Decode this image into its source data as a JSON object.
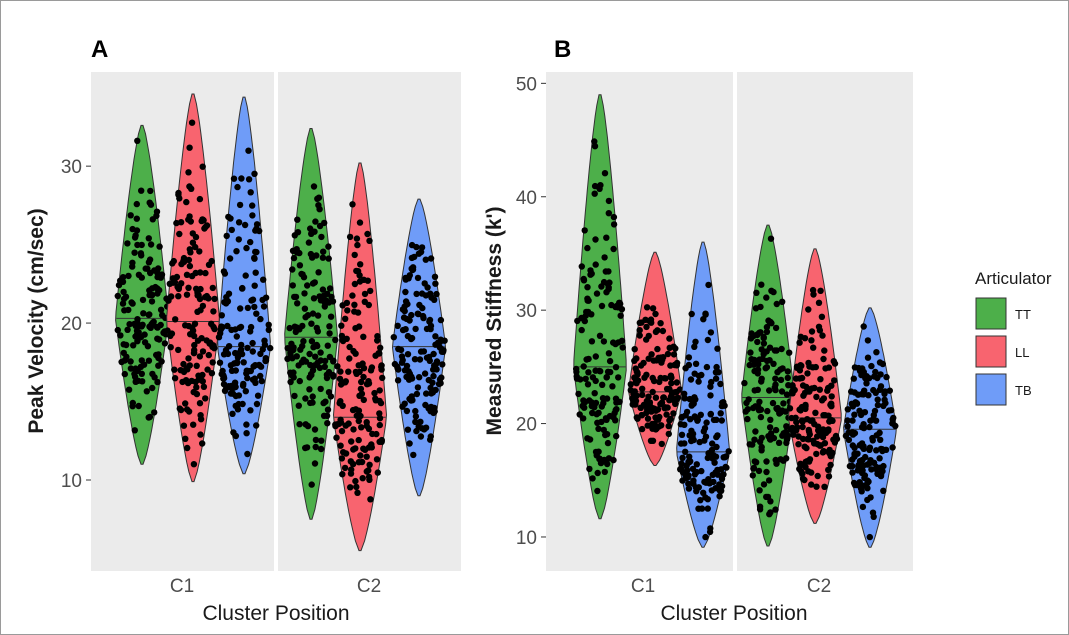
{
  "legend": {
    "title": "Articulator",
    "items": [
      {
        "label": "TT",
        "color": "#4daf4a"
      },
      {
        "label": "LL",
        "color": "#f8646f"
      },
      {
        "label": "TB",
        "color": "#6f9cf8"
      }
    ]
  },
  "chart_data": [
    {
      "panel": "A",
      "type": "violin",
      "xlabel": "Cluster Position",
      "ylabel": "Peak Velocity (cm/sec)",
      "ylim": [
        4.2,
        36.0
      ],
      "yticks": [
        10,
        20,
        30
      ],
      "grid": false,
      "facets": [
        "C1",
        "C2"
      ],
      "series": [
        {
          "facet": "C1",
          "articulator": "TT",
          "min": 11.0,
          "max": 32.6,
          "median": 20.3
        },
        {
          "facet": "C1",
          "articulator": "LL",
          "min": 9.9,
          "max": 34.6,
          "median": 20.1
        },
        {
          "facet": "C1",
          "articulator": "TB",
          "min": 10.4,
          "max": 34.4,
          "median": 18.5
        },
        {
          "facet": "C2",
          "articulator": "TT",
          "min": 7.5,
          "max": 32.4,
          "median": 19.1
        },
        {
          "facet": "C2",
          "articulator": "LL",
          "min": 5.5,
          "max": 30.2,
          "median": 14.0
        },
        {
          "facet": "C2",
          "articulator": "TB",
          "min": 9.0,
          "max": 27.9,
          "median": 18.5
        }
      ]
    },
    {
      "panel": "B",
      "type": "violin",
      "xlabel": "Cluster Position",
      "ylabel": "Measured Stiffness (k')",
      "ylim": [
        7.0,
        51.0
      ],
      "yticks": [
        10,
        20,
        30,
        40,
        50
      ],
      "grid": false,
      "facets": [
        "C1",
        "C2"
      ],
      "series": [
        {
          "facet": "C1",
          "articulator": "TT",
          "min": 11.6,
          "max": 49.0,
          "median": 25.0
        },
        {
          "facet": "C1",
          "articulator": "LL",
          "min": 16.3,
          "max": 35.1,
          "median": 22.8
        },
        {
          "facet": "C1",
          "articulator": "TB",
          "min": 9.1,
          "max": 36.0,
          "median": 17.5
        },
        {
          "facet": "C2",
          "articulator": "TT",
          "min": 9.2,
          "max": 37.5,
          "median": 22.3
        },
        {
          "facet": "C2",
          "articulator": "LL",
          "min": 11.2,
          "max": 35.4,
          "median": 20.5
        },
        {
          "facet": "C2",
          "articulator": "TB",
          "min": 9.1,
          "max": 30.2,
          "median": 19.5
        }
      ]
    }
  ]
}
